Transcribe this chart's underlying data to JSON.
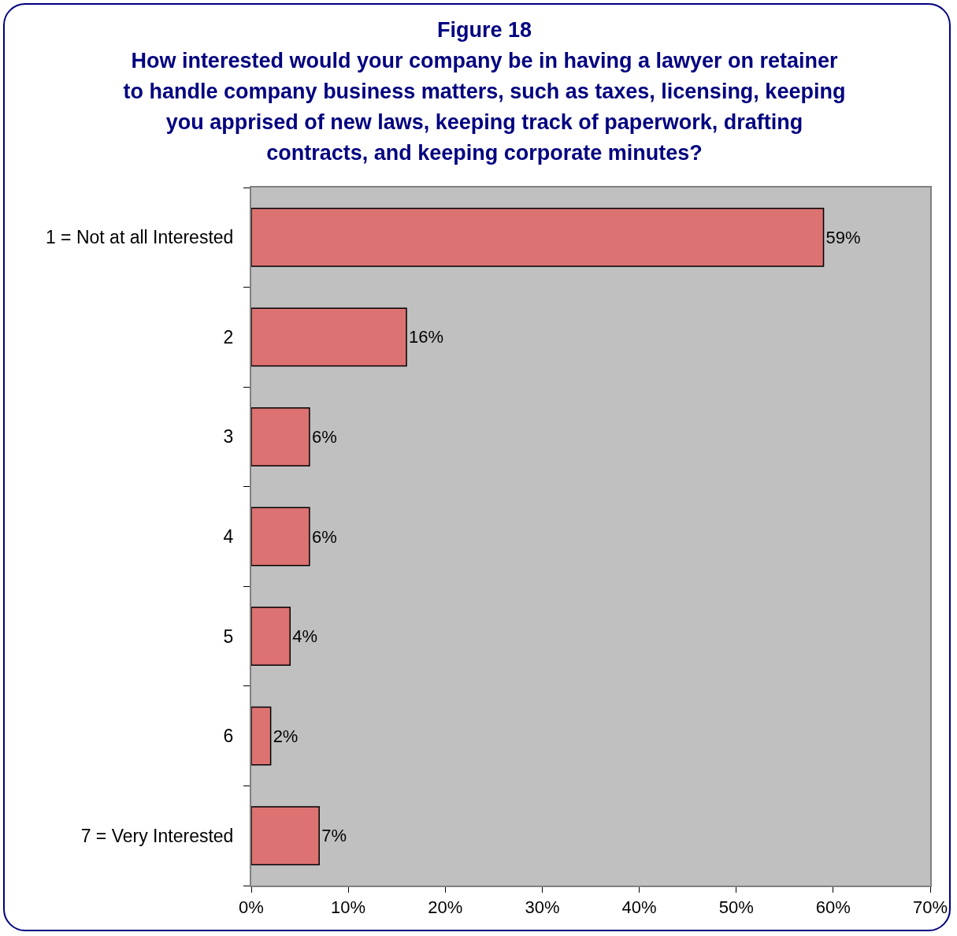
{
  "chart_data": {
    "type": "bar",
    "orientation": "horizontal",
    "title": "Figure 18",
    "subtitle": "How interested would your company be in having a lawyer on retainer to handle company business matters, such as taxes, licensing, keeping you apprised of new laws, keeping track of paperwork, drafting contracts, and keeping corporate minutes?",
    "categories": [
      "1 = Not at all Interested",
      "2",
      "3",
      "4",
      "5",
      "6",
      "7 = Very Interested"
    ],
    "values": [
      59,
      16,
      6,
      6,
      4,
      2,
      7
    ],
    "color": "#dc7272",
    "value_labels": [
      "59%",
      "16%",
      "6%",
      "6%",
      "4%",
      "2%",
      "7%"
    ],
    "xlim": [
      0,
      70
    ],
    "xticks": [
      {
        "value": 0,
        "label": "0%"
      },
      {
        "value": 10,
        "label": "10%"
      },
      {
        "value": 20,
        "label": "20%"
      },
      {
        "value": 30,
        "label": "30%"
      },
      {
        "value": 40,
        "label": "40%"
      },
      {
        "value": 50,
        "label": "50%"
      },
      {
        "value": 60,
        "label": "60%"
      },
      {
        "value": 70,
        "label": "70%"
      }
    ]
  }
}
